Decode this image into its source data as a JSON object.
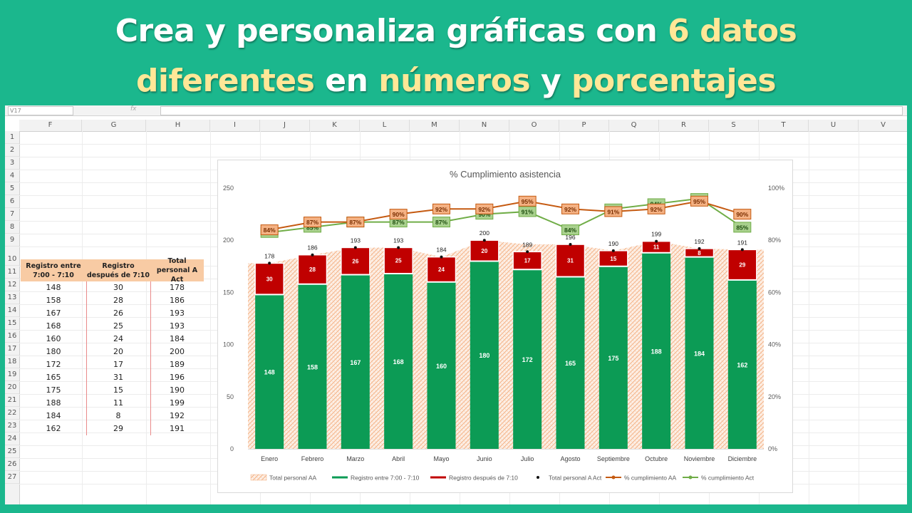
{
  "banner": {
    "line1_a": "Crea y personaliza gráficas con ",
    "line1_b": "6 datos",
    "line2_a": "diferentes",
    "line2_b": " en ",
    "line2_c": "números",
    "line2_d": " y ",
    "line2_e": "porcentajes",
    "bg_color": "#1bb78d",
    "highlight_color": "#ffe797"
  },
  "sheet": {
    "name_box": "V17",
    "fx_label": "fx",
    "columns": [
      "F",
      "G",
      "H",
      "I",
      "J",
      "K",
      "L",
      "M",
      "N",
      "O",
      "P",
      "Q",
      "R",
      "S",
      "T",
      "U",
      "V"
    ],
    "rows": [
      "1",
      "2",
      "3",
      "4",
      "5",
      "6",
      "7",
      "8",
      "9",
      "10",
      "11",
      "12",
      "13",
      "14",
      "15",
      "16",
      "17",
      "18",
      "19",
      "20",
      "21",
      "22",
      "23",
      "24",
      "25",
      "26",
      "27"
    ]
  },
  "table": {
    "headers": [
      "Registro entre 7:00 - 7:10",
      "Registro después de 7:10",
      "Total personal A Act"
    ],
    "rows": [
      [
        "148",
        "30",
        "178"
      ],
      [
        "158",
        "28",
        "186"
      ],
      [
        "167",
        "26",
        "193"
      ],
      [
        "168",
        "25",
        "193"
      ],
      [
        "160",
        "24",
        "184"
      ],
      [
        "180",
        "20",
        "200"
      ],
      [
        "172",
        "17",
        "189"
      ],
      [
        "165",
        "31",
        "196"
      ],
      [
        "175",
        "15",
        "190"
      ],
      [
        "188",
        "11",
        "199"
      ],
      [
        "184",
        "8",
        "192"
      ],
      [
        "162",
        "29",
        "191"
      ]
    ]
  },
  "chart_data": {
    "type": "bar",
    "title": "% Cumplimiento asistencia",
    "categories": [
      "Enero",
      "Febrero",
      "Marzo",
      "Abril",
      "Mayo",
      "Junio",
      "Julio",
      "Agosto",
      "Septiembre",
      "Octubre",
      "Noviembre",
      "Diciembre"
    ],
    "ylim": [
      0,
      250
    ],
    "y_ticks": [
      "0",
      "50",
      "100",
      "150",
      "200",
      "250"
    ],
    "y2lim": [
      0,
      100
    ],
    "y2_ticks": [
      "0%",
      "20%",
      "40%",
      "60%",
      "80%",
      "100%"
    ],
    "legend_position": "bottom",
    "series": [
      {
        "name": "Total personal  AA",
        "kind": "area",
        "color": "#f4b183",
        "values": [
          178,
          186,
          193,
          193,
          184,
          200,
          196,
          196,
          190,
          199,
          192,
          191
        ]
      },
      {
        "name": "Registro entre 7:00 - 7:10",
        "kind": "stacked-bar",
        "color": "#0c9b55",
        "values": [
          148,
          158,
          167,
          168,
          160,
          180,
          172,
          165,
          175,
          188,
          184,
          162
        ]
      },
      {
        "name": "Registro después de 7:10",
        "kind": "stacked-bar",
        "color": "#c00000",
        "values": [
          30,
          28,
          26,
          25,
          24,
          20,
          17,
          31,
          15,
          11,
          8,
          29
        ]
      },
      {
        "name": "Total personal  A Act",
        "kind": "marker",
        "color": "#111111",
        "values": [
          178,
          186,
          193,
          193,
          184,
          200,
          189,
          196,
          190,
          199,
          192,
          191
        ]
      },
      {
        "name": "% cumplimiento AA",
        "kind": "line-secondary",
        "color": "#c55a11",
        "values": [
          84,
          87,
          87,
          90,
          92,
          92,
          95,
          92,
          91,
          92,
          95,
          90
        ]
      },
      {
        "name": "% cumplimiento Act",
        "kind": "line-secondary",
        "color": "#70ad47",
        "values": [
          83,
          85,
          87,
          87,
          87,
          90,
          91,
          84,
          92,
          94,
          96,
          85
        ]
      }
    ],
    "bar_labels_green": [
      "148",
      "158",
      "167",
      "168",
      "160",
      "180",
      "172",
      "165",
      "175",
      "188",
      "184",
      "162"
    ],
    "bar_labels_red": [
      "30",
      "28",
      "26",
      "25",
      "24",
      "20",
      "17",
      "31",
      "15",
      "11",
      "8",
      "29"
    ],
    "total_labels": [
      "178",
      "186",
      "193",
      "193",
      "184",
      "200",
      "189",
      "196",
      "190",
      "199",
      "192",
      "191"
    ],
    "pct_labels_aa": [
      "84%",
      "87%",
      "87%",
      "90%",
      "92%",
      "92%",
      "95%",
      "92%",
      "91%",
      "92%",
      "95%",
      "90%"
    ],
    "pct_labels_act": [
      "83%",
      "85%",
      "87%",
      "87%",
      "87%",
      "90%",
      "91%",
      "84%",
      "92%",
      "94%",
      "96%",
      "85%"
    ]
  }
}
